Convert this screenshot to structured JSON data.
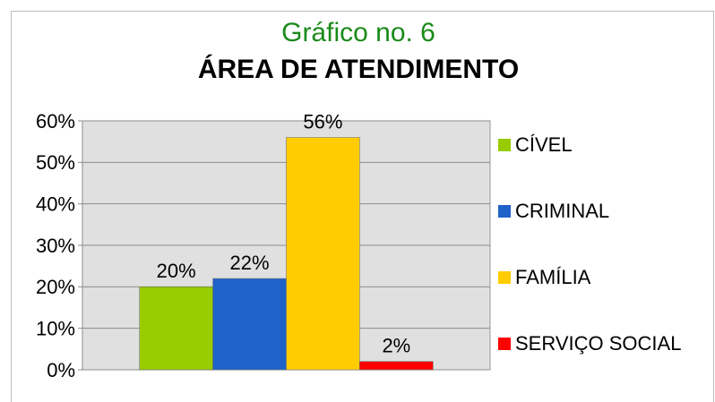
{
  "chart_data": {
    "type": "bar",
    "title": "Gráfico no. 6",
    "subtitle": "ÁREA DE ATENDIMENTO",
    "categories": [
      null
    ],
    "series": [
      {
        "name": "CÍVEL",
        "color": "#99cc00",
        "values": [
          20
        ],
        "value_labels": [
          "20%"
        ]
      },
      {
        "name": "CRIMINAL",
        "color": "#1f62c9",
        "values": [
          22
        ],
        "value_labels": [
          "22%"
        ]
      },
      {
        "name": "FAMÍLIA",
        "color": "#ffcc00",
        "values": [
          56
        ],
        "value_labels": [
          "56%"
        ]
      },
      {
        "name": "SERVIÇO SOCIAL",
        "color": "#ff0000",
        "values": [
          2
        ],
        "value_labels": [
          "2%"
        ]
      }
    ],
    "ylim": [
      0,
      60
    ],
    "yticks": [
      {
        "value": 0,
        "label": "0%"
      },
      {
        "value": 10,
        "label": "10%"
      },
      {
        "value": 20,
        "label": "20%"
      },
      {
        "value": 30,
        "label": "30%"
      },
      {
        "value": 40,
        "label": "40%"
      },
      {
        "value": 50,
        "label": "50%"
      },
      {
        "value": 60,
        "label": "60%"
      }
    ],
    "grid": true,
    "legend": "right"
  }
}
